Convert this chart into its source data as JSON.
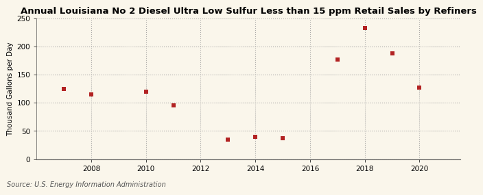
{
  "title": "Annual Louisiana No 2 Diesel Ultra Low Sulfur Less than 15 ppm Retail Sales by Refiners",
  "ylabel": "Thousand Gallons per Day",
  "source": "Source: U.S. Energy Information Administration",
  "x": [
    2007,
    2008,
    2010,
    2011,
    2013,
    2014,
    2015,
    2017,
    2018,
    2019,
    2020
  ],
  "y": [
    125,
    115,
    120,
    95,
    35,
    40,
    37,
    177,
    233,
    188,
    127
  ],
  "xlim": [
    2006.0,
    2021.5
  ],
  "ylim": [
    0,
    250
  ],
  "yticks": [
    0,
    50,
    100,
    150,
    200,
    250
  ],
  "xticks": [
    2008,
    2010,
    2012,
    2014,
    2016,
    2018,
    2020
  ],
  "marker_color": "#b22222",
  "marker": "s",
  "marker_size": 4,
  "background_color": "#faf6eb",
  "grid_color": "#999999",
  "title_fontsize": 9.5,
  "label_fontsize": 7.5,
  "tick_fontsize": 7.5,
  "source_fontsize": 7.0
}
